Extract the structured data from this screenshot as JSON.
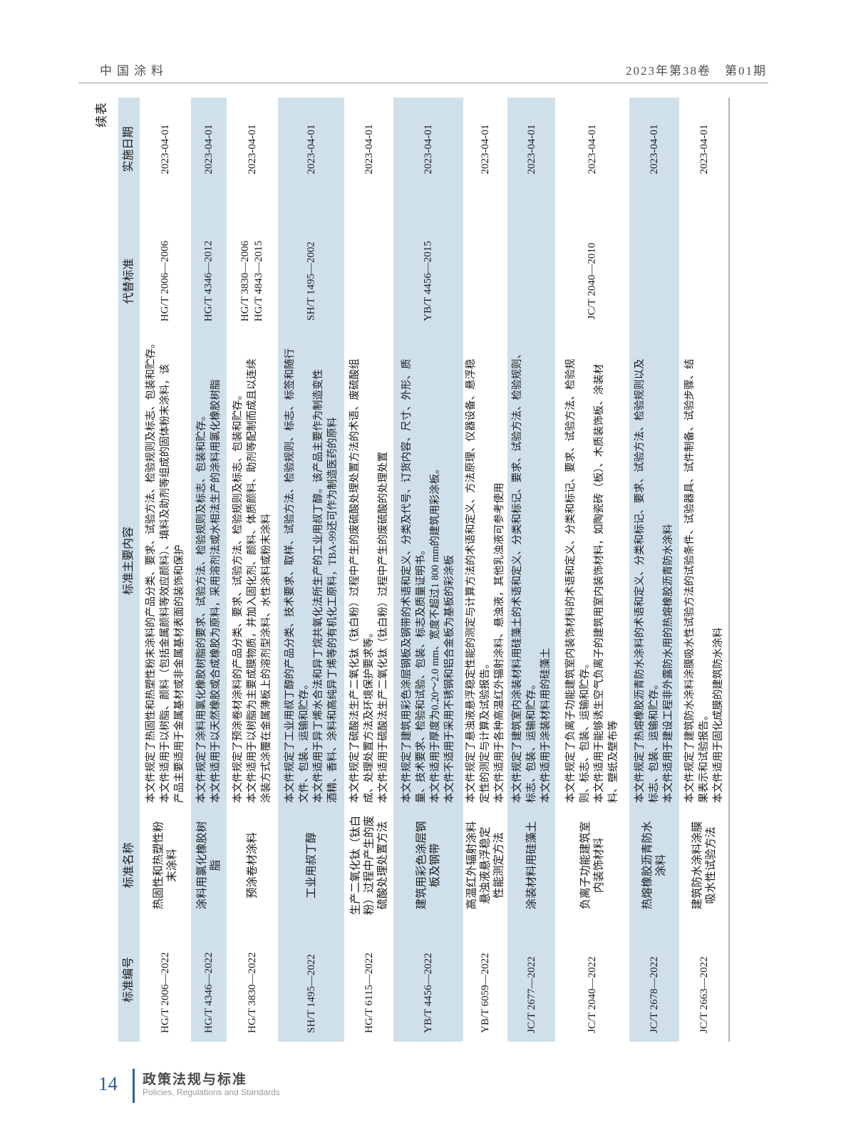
{
  "page_header": {
    "left": "中国涂料",
    "right": "2023年第38卷　第01期"
  },
  "table_label": "续表",
  "table": {
    "columns": [
      "标准编号",
      "标准名称",
      "标准主要内容",
      "代替标准",
      "实施日期"
    ],
    "rows": [
      {
        "code": "HG/T 2006—2022",
        "name": "热固性和热塑性粉\n末涂料",
        "content": "本文件规定了热固性和热塑性粉末涂料的产品分类、要求、试验方法、检验规则及标志、包装和贮存。\n本文件适用于以树脂、颜料（包括金属颜料等效应颜料）、填料及助剂等组成的固体粉末涂料，该\n产品主要适用于金属基材或非金属基材表面的装饰和保护",
        "replaces": "HG/T 2006—2006",
        "date": "2023-04-01"
      },
      {
        "code": "HG/T 4346—2022",
        "name": "涂料用氯化橡胶树\n脂",
        "content": "本文件规定了涂料用氯化橡胶树脂的要求、试验方法、检验规则及标志、包装和贮存。\n本文件适用于以天然橡胶或合成橡胶为原料，采用溶剂法或水相法生产的涂料用氯化橡胶树脂",
        "replaces": "HG/T 4346—2012",
        "date": "2023-04-01"
      },
      {
        "code": "HG/T 3830—2022",
        "name": "预涂卷材涂料",
        "content": "本文件规定了预涂卷材涂料的产品分类、要求、试验方法、检验规则及标志、包装和贮存。\n本文件适用于以树脂为主要成膜物质，并加入固化剂、颜料、体质颜料、助剂等配制而成且以连续\n涂装方式涂覆在金属薄板上的溶剂型涂料、水性涂料或粉末涂料",
        "replaces": "HG/T 3830—2006\nHG/T 4843—2015",
        "date": "2023-04-01"
      },
      {
        "code": "SH/T 1495—2022",
        "name": "工业用叔丁醇",
        "content": "本文件规定了工业用叔丁醇的产品分类、技术要求、取样、试验方法、检验规则、标志、标签和随行\n文件、包装、运输和贮存。\n本文件适用于异丁烯水合法和异丁烷共氧化法所生产的工业用叔丁醇。该产品主要作为制造变性\n酒精、香料、涂料和高纯异丁烯等的有机化工原料，TBA-99还可作为制造医药的原料",
        "replaces": "SH/T 1495—2002",
        "date": "2023-04-01"
      },
      {
        "code": "HG/T 6115—2022",
        "name": "生产二氧化钛（钛白\n粉）过程中产生的废\n硫酸处理处置方法",
        "content": "本文件规定了硫酸法生产二氧化钛（钛白粉）过程中产生的废硫酸处理处置方法的术语、废硫酸组\n成、处理处置方法及环境保护要求等。\n本文件适用于硫酸法生产二氧化钛（钛白粉）过程中产生的废硫酸的处理处置",
        "replaces": "",
        "date": "2023-04-01"
      },
      {
        "code": "YB/T 4456—2022",
        "name": "建筑用彩色涂层钢\n板及钢带",
        "content": "本文件规定了建筑用彩色涂层钢板及钢带的术语和定义、分类及代号、订货内容、尺寸、外形、质\n量、技术要求、检验和试验、包装、标志及质量证明书。\n本文件适用于厚度为0.20～2.0 mm、宽度不超过1 800 mm的建筑用彩涂板。\n本文件不适用于采用不锈钢和铝合金板为基板的彩涂板",
        "replaces": "YB/T 4456—2015",
        "date": "2023-04-01"
      },
      {
        "code": "YB/T 6059—2022",
        "name": "高温红外辐射涂料\n悬浊液悬浮稳定\n性能测定方法",
        "content": "本文件规定了悬浊液悬浮稳定性能的测定与计算方法的术语和定义、方法原理、仪器设备、悬浮稳\n定性的测定与计算及试验报告。\n本文件适用于各种高温红外辐射涂料、悬浊液，其他乳浊液可参考使用",
        "replaces": "",
        "date": "2023-04-01"
      },
      {
        "code": "JC/T 2677—2022",
        "name": "涂装材料用硅藻土",
        "content": "本文件规定了建筑室内涂装材料用硅藻土的术语和定义、分类和标记、要求、试验方法、检验规则、\n标志、包装、运输和贮存。\n本文件适用于涂装材料用的硅藻土",
        "replaces": "",
        "date": "2023-04-01"
      },
      {
        "code": "JC/T 2040—2022",
        "name": "负离子功能建筑室\n内装饰材料",
        "content": "本文件规定了负离子功能建筑室内装饰材料的术语和定义、分类和标记、要求、试验方法、检验规\n则、标志、包装、运输和贮存。\n本文件适用于能够诱生空气负离子的建筑用室内装饰材料，如陶瓷砖（板）、木质装饰板、涂装材\n料、壁纸及壁布等",
        "replaces": "JC/T 2040—2010",
        "date": "2023-04-01"
      },
      {
        "code": "JC/T 2678—2022",
        "name": "热熔橡胶沥青防水\n涂料",
        "content": "本文件规定了热熔橡胶沥青防水涂料的术语和定义、分类和标记、要求、试验方法、检验规则以及\n标志、包装、运输和贮存。\n本文件适用于建设工程非外露防水用的热熔橡胶沥青防水涂料",
        "replaces": "",
        "date": "2023-04-01"
      },
      {
        "code": "JC/T 2663—2022",
        "name": "建筑防水涂料涂膜\n吸水性试验方法",
        "content": "本文件规定了建筑防水涂料涂膜吸水性试验方法的试验条件、试验器具、试件制备、试验步骤、结\n果表示和试验报告。\n本文件适用于固化成膜的建筑防水涂料",
        "replaces": "",
        "date": "2023-04-01"
      }
    ]
  },
  "footer": {
    "page_number": "14",
    "section_cn": "政策法规与标准",
    "section_en": "Policies, Regulations and Standards"
  }
}
